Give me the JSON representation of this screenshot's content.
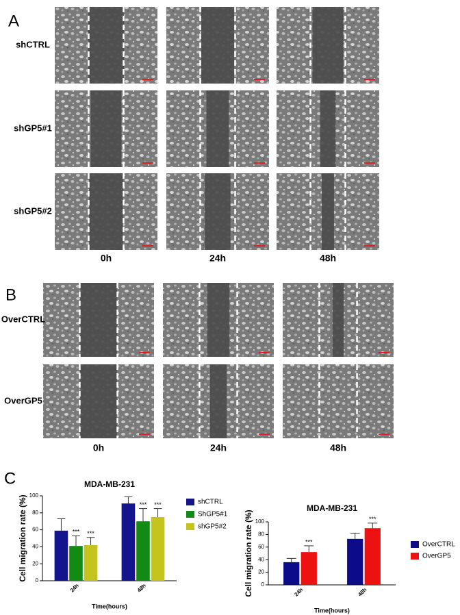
{
  "figure": {
    "panels": [
      {
        "label": "A",
        "rows": [
          "shCTRL",
          "shGP5#1",
          "shGP5#2"
        ],
        "columns": [
          "0h",
          "24h",
          "48h"
        ]
      },
      {
        "label": "B",
        "rows": [
          "OverCTRL",
          "OverGP5"
        ],
        "columns": [
          "0h",
          "24h",
          "48h"
        ]
      },
      {
        "label": "C"
      }
    ]
  },
  "chart_data": [
    {
      "type": "bar",
      "title": "MDA-MB-231",
      "x_label": "Time(hours)",
      "y_label": "Cell migration rate (%)",
      "categories": [
        "24h",
        "48h"
      ],
      "series": [
        {
          "name": "shCTRL",
          "color": "#14148c",
          "values": [
            59,
            91
          ],
          "errors": [
            14,
            8
          ],
          "annotations": [
            null,
            null
          ]
        },
        {
          "name": "ShGP5#1",
          "color": "#138a13",
          "values": [
            41,
            70
          ],
          "errors": [
            12,
            15
          ],
          "annotations": [
            "***",
            "***"
          ]
        },
        {
          "name": "shGP5#2",
          "color": "#c4c41c",
          "values": [
            42,
            75
          ],
          "errors": [
            9,
            10
          ],
          "annotations": [
            "***",
            "***"
          ]
        }
      ],
      "ylim": [
        0,
        100
      ],
      "yticks": [
        0,
        20,
        40,
        60,
        80,
        100
      ],
      "legend": "right"
    },
    {
      "type": "bar",
      "title": "MDA-MB-231",
      "x_label": "Time(hours)",
      "y_label": "Cell migration rate (%)",
      "categories": [
        "24h",
        "48h"
      ],
      "series": [
        {
          "name": "OverCTRL",
          "color": "#0c0c8a",
          "values": [
            36,
            73
          ],
          "errors": [
            6,
            9
          ],
          "annotations": [
            null,
            null
          ]
        },
        {
          "name": "OverGP5",
          "color": "#ee1111",
          "values": [
            52,
            90
          ],
          "errors": [
            10,
            8
          ],
          "annotations": [
            "***",
            "***"
          ]
        }
      ],
      "ylim": [
        0,
        100
      ],
      "yticks": [
        0,
        20,
        40,
        60,
        80,
        100
      ],
      "legend": "right"
    }
  ]
}
